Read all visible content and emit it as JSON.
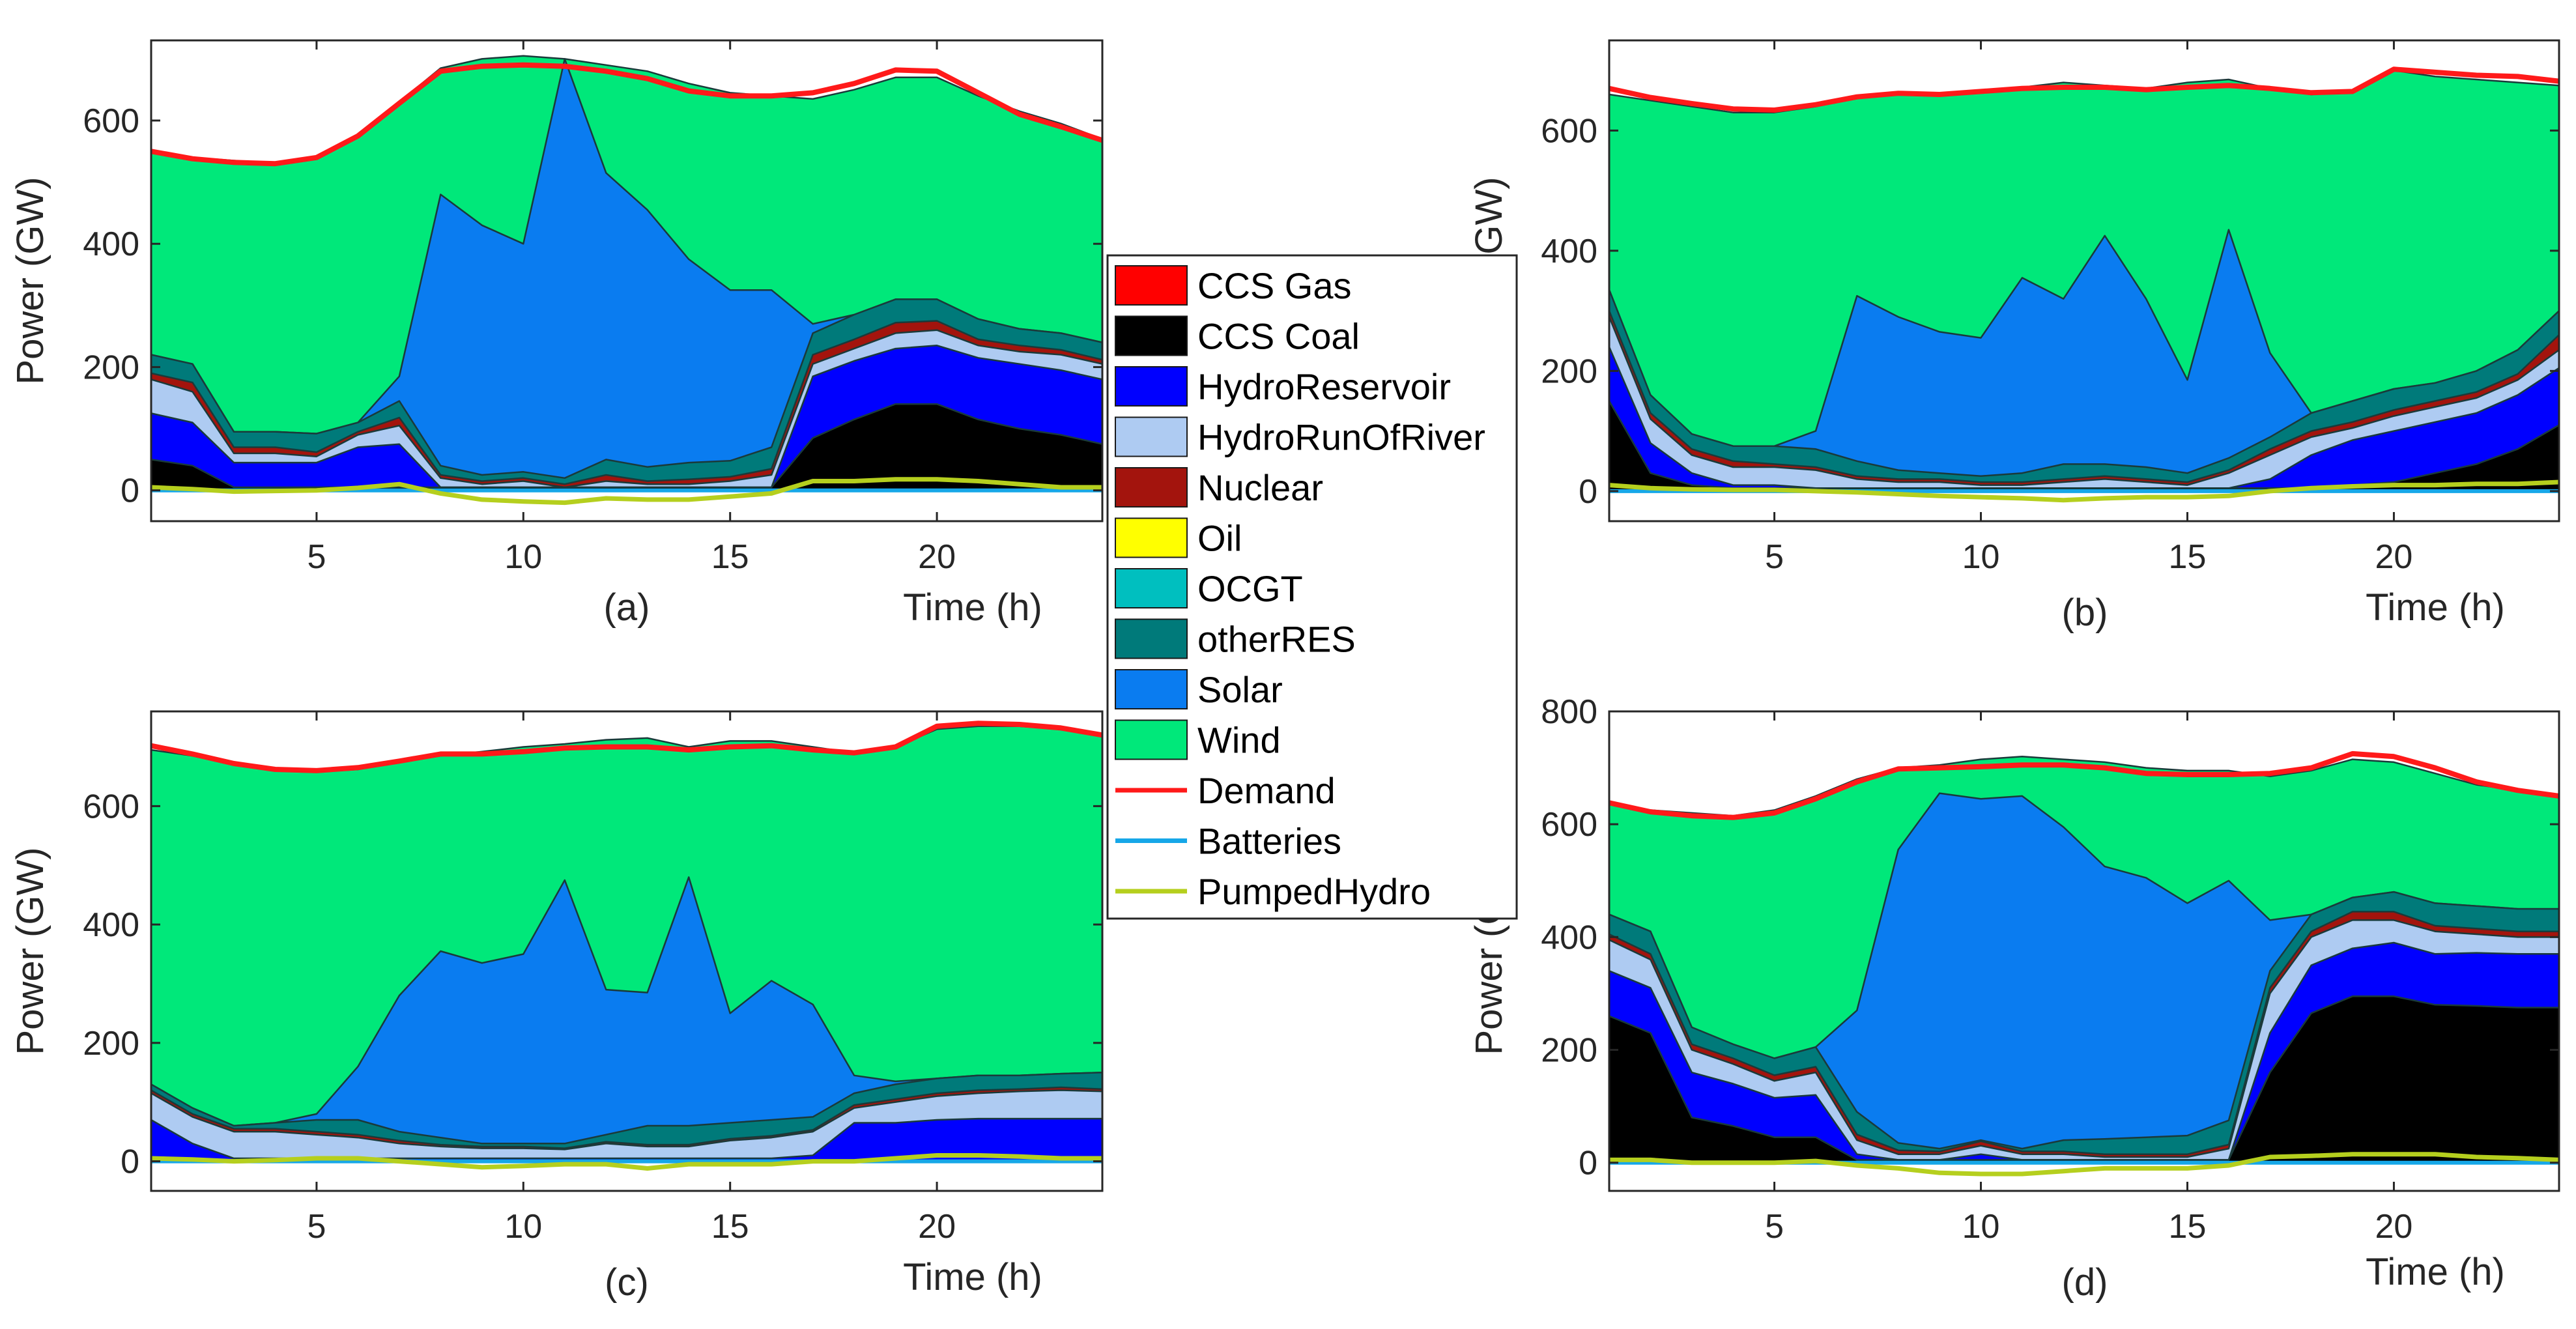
{
  "chart_data": [
    {
      "type": "area",
      "panel_label": "(a)",
      "xlabel": "Time (h)",
      "ylabel": "Power (GW)",
      "xlim": [
        1,
        24
      ],
      "ylim": [
        -50,
        730
      ],
      "xticks": [
        5,
        10,
        15,
        20
      ],
      "yticks": [
        0,
        200,
        400,
        600
      ],
      "x": [
        1,
        2,
        3,
        4,
        5,
        6,
        7,
        8,
        9,
        10,
        11,
        12,
        13,
        14,
        15,
        16,
        17,
        18,
        19,
        20,
        21,
        22,
        23,
        24
      ],
      "stack_tops": {
        "CCS Coal": [
          50,
          40,
          5,
          5,
          5,
          5,
          5,
          5,
          5,
          5,
          5,
          5,
          5,
          5,
          5,
          5,
          85,
          115,
          140,
          140,
          115,
          100,
          90,
          75
        ],
        "HydroReservoir": [
          125,
          110,
          45,
          45,
          45,
          70,
          75,
          5,
          5,
          5,
          5,
          5,
          5,
          5,
          5,
          5,
          185,
          210,
          230,
          235,
          215,
          205,
          195,
          180
        ],
        "HydroRunOfRiver": [
          180,
          160,
          60,
          60,
          55,
          90,
          105,
          20,
          10,
          15,
          5,
          15,
          10,
          10,
          15,
          25,
          205,
          230,
          255,
          260,
          235,
          225,
          220,
          205
        ],
        "Nuclear": [
          190,
          175,
          70,
          70,
          62,
          95,
          118,
          25,
          15,
          20,
          10,
          25,
          15,
          18,
          22,
          35,
          220,
          245,
          272,
          275,
          245,
          235,
          228,
          212
        ],
        "otherRES": [
          220,
          205,
          95,
          95,
          92,
          110,
          145,
          40,
          25,
          30,
          20,
          50,
          38,
          45,
          48,
          70,
          255,
          285,
          310,
          310,
          278,
          262,
          255,
          240
        ],
        "Solar": [
          220,
          205,
          95,
          95,
          92,
          110,
          185,
          480,
          430,
          400,
          700,
          515,
          455,
          375,
          325,
          325,
          270,
          285,
          310,
          310,
          278,
          262,
          255,
          240
        ],
        "Wind": [
          550,
          540,
          535,
          530,
          540,
          575,
          630,
          685,
          700,
          705,
          700,
          690,
          680,
          660,
          645,
          640,
          635,
          650,
          670,
          670,
          640,
          615,
          595,
          570
        ]
      },
      "demand": [
        550,
        538,
        532,
        530,
        540,
        575,
        628,
        680,
        688,
        690,
        688,
        680,
        668,
        648,
        640,
        640,
        645,
        660,
        682,
        680,
        645,
        610,
        590,
        568
      ],
      "batteries": [
        0,
        0,
        0,
        0,
        0,
        0,
        0,
        0,
        0,
        0,
        0,
        0,
        0,
        0,
        0,
        0,
        0,
        0,
        0,
        0,
        0,
        0,
        0,
        0
      ],
      "pumped_hydro": [
        5,
        2,
        -2,
        -1,
        0,
        4,
        10,
        -5,
        -15,
        -18,
        -20,
        -13,
        -15,
        -15,
        -10,
        -5,
        15,
        15,
        18,
        18,
        15,
        10,
        5,
        5
      ]
    },
    {
      "type": "area",
      "panel_label": "(b)",
      "xlabel": "Time (h)",
      "ylabel": "Power (GW)",
      "xlim": [
        1,
        24
      ],
      "ylim": [
        -50,
        750
      ],
      "xticks": [
        5,
        10,
        15,
        20
      ],
      "yticks": [
        0,
        200,
        400,
        600
      ],
      "x": [
        1,
        2,
        3,
        4,
        5,
        6,
        7,
        8,
        9,
        10,
        11,
        12,
        13,
        14,
        15,
        16,
        17,
        18,
        19,
        20,
        21,
        22,
        23,
        24
      ],
      "stack_tops": {
        "CCS Coal": [
          150,
          30,
          10,
          5,
          5,
          5,
          5,
          5,
          5,
          5,
          5,
          5,
          5,
          5,
          5,
          5,
          5,
          5,
          10,
          15,
          30,
          45,
          70,
          110
        ],
        "HydroReservoir": [
          240,
          80,
          30,
          10,
          10,
          5,
          5,
          5,
          5,
          5,
          5,
          5,
          5,
          5,
          5,
          5,
          20,
          60,
          85,
          100,
          115,
          130,
          160,
          205
        ],
        "HydroRunOfRiver": [
          290,
          120,
          60,
          40,
          40,
          35,
          20,
          15,
          15,
          10,
          10,
          15,
          20,
          15,
          10,
          30,
          60,
          90,
          105,
          125,
          140,
          155,
          185,
          235
        ],
        "Nuclear": [
          300,
          130,
          70,
          50,
          45,
          40,
          25,
          20,
          20,
          15,
          15,
          20,
          25,
          20,
          15,
          35,
          70,
          100,
          115,
          135,
          150,
          165,
          195,
          260
        ],
        "otherRES": [
          335,
          160,
          95,
          75,
          75,
          70,
          50,
          35,
          30,
          25,
          30,
          45,
          45,
          40,
          30,
          55,
          90,
          130,
          150,
          170,
          180,
          200,
          235,
          300
        ],
        "Solar": [
          335,
          160,
          95,
          75,
          75,
          100,
          325,
          290,
          265,
          255,
          355,
          320,
          425,
          320,
          185,
          435,
          230,
          130,
          150,
          170,
          180,
          200,
          235,
          300
        ],
        "Wind": [
          660,
          650,
          640,
          630,
          630,
          640,
          655,
          660,
          660,
          665,
          672,
          680,
          675,
          670,
          680,
          685,
          670,
          660,
          665,
          700,
          690,
          685,
          680,
          675
        ]
      },
      "demand": [
        670,
        655,
        645,
        636,
        634,
        643,
        656,
        662,
        660,
        665,
        670,
        672,
        672,
        668,
        672,
        675,
        670,
        663,
        665,
        702,
        697,
        692,
        690,
        682
      ],
      "batteries": [
        0,
        0,
        0,
        0,
        0,
        0,
        0,
        0,
        0,
        0,
        0,
        0,
        0,
        0,
        0,
        0,
        0,
        0,
        0,
        0,
        0,
        0,
        0,
        0
      ],
      "pumped_hydro": [
        10,
        5,
        3,
        2,
        2,
        0,
        -2,
        -5,
        -8,
        -10,
        -12,
        -15,
        -12,
        -10,
        -10,
        -8,
        0,
        5,
        8,
        10,
        10,
        12,
        12,
        15
      ]
    },
    {
      "type": "area",
      "panel_label": "(c)",
      "xlabel": "Time (h)",
      "ylabel": "Power (GW)",
      "xlim": [
        1,
        24
      ],
      "ylim": [
        -50,
        760
      ],
      "xticks": [
        5,
        10,
        15,
        20
      ],
      "yticks": [
        0,
        200,
        400,
        600
      ],
      "x": [
        1,
        2,
        3,
        4,
        5,
        6,
        7,
        8,
        9,
        10,
        11,
        12,
        13,
        14,
        15,
        16,
        17,
        18,
        19,
        20,
        21,
        22,
        23,
        24
      ],
      "stack_tops": {
        "CCS Coal": [
          0,
          0,
          0,
          0,
          0,
          0,
          0,
          0,
          0,
          0,
          0,
          0,
          0,
          0,
          0,
          0,
          0,
          0,
          0,
          0,
          0,
          0,
          0,
          0
        ],
        "HydroReservoir": [
          70,
          30,
          5,
          5,
          5,
          5,
          5,
          5,
          5,
          5,
          5,
          5,
          5,
          5,
          5,
          5,
          10,
          65,
          65,
          70,
          72,
          72,
          72,
          72
        ],
        "HydroRunOfRiver": [
          115,
          75,
          50,
          50,
          45,
          40,
          30,
          25,
          22,
          22,
          20,
          30,
          25,
          25,
          35,
          40,
          50,
          90,
          100,
          110,
          115,
          118,
          120,
          118
        ],
        "Nuclear": [
          120,
          80,
          55,
          55,
          50,
          45,
          35,
          28,
          25,
          25,
          22,
          33,
          28,
          28,
          38,
          43,
          53,
          95,
          105,
          115,
          120,
          122,
          125,
          122
        ],
        "otherRES": [
          130,
          90,
          60,
          65,
          70,
          70,
          50,
          40,
          30,
          30,
          30,
          45,
          60,
          60,
          65,
          70,
          75,
          115,
          130,
          140,
          145,
          145,
          148,
          150
        ],
        "Solar": [
          130,
          90,
          60,
          65,
          80,
          160,
          280,
          355,
          335,
          350,
          475,
          290,
          285,
          480,
          250,
          305,
          265,
          145,
          135,
          140,
          145,
          145,
          148,
          150
        ],
        "Wind": [
          695,
          685,
          670,
          660,
          658,
          662,
          675,
          685,
          692,
          700,
          705,
          712,
          715,
          700,
          710,
          710,
          700,
          690,
          700,
          730,
          735,
          735,
          730,
          720
        ]
      },
      "demand": [
        702,
        688,
        672,
        662,
        660,
        665,
        676,
        688,
        688,
        692,
        698,
        700,
        700,
        695,
        700,
        702,
        695,
        690,
        700,
        735,
        740,
        738,
        732,
        720
      ],
      "batteries": [
        0,
        0,
        0,
        0,
        0,
        0,
        0,
        0,
        0,
        0,
        0,
        0,
        0,
        0,
        0,
        0,
        0,
        0,
        0,
        0,
        0,
        0,
        0,
        0
      ],
      "pumped_hydro": [
        5,
        3,
        0,
        2,
        5,
        5,
        0,
        -5,
        -10,
        -8,
        -5,
        -5,
        -12,
        -5,
        -5,
        -5,
        0,
        0,
        5,
        10,
        10,
        8,
        5,
        5
      ]
    },
    {
      "type": "area",
      "panel_label": "(d)",
      "xlabel": "Time (h)",
      "ylabel": "Power (GW)",
      "xlim": [
        1,
        24
      ],
      "ylim": [
        -50,
        800
      ],
      "xticks": [
        5,
        10,
        15,
        20
      ],
      "yticks": [
        0,
        200,
        400,
        600,
        800
      ],
      "x": [
        1,
        2,
        3,
        4,
        5,
        6,
        7,
        8,
        9,
        10,
        11,
        12,
        13,
        14,
        15,
        16,
        17,
        18,
        19,
        20,
        21,
        22,
        23,
        24
      ],
      "stack_tops": {
        "CCS Coal": [
          260,
          230,
          80,
          65,
          45,
          45,
          5,
          5,
          5,
          5,
          5,
          5,
          5,
          5,
          5,
          5,
          160,
          265,
          295,
          295,
          280,
          278,
          275,
          275
        ],
        "HydroReservoir": [
          340,
          310,
          160,
          140,
          115,
          120,
          15,
          5,
          5,
          15,
          5,
          5,
          5,
          5,
          5,
          5,
          230,
          350,
          380,
          390,
          370,
          372,
          370,
          370
        ],
        "HydroRunOfRiver": [
          395,
          360,
          200,
          175,
          145,
          160,
          40,
          15,
          15,
          30,
          15,
          15,
          10,
          10,
          10,
          25,
          300,
          400,
          430,
          430,
          410,
          405,
          400,
          400
        ],
        "Nuclear": [
          405,
          370,
          210,
          185,
          155,
          170,
          50,
          22,
          20,
          38,
          20,
          20,
          15,
          15,
          15,
          32,
          310,
          410,
          445,
          445,
          420,
          415,
          410,
          410
        ],
        "otherRES": [
          440,
          410,
          240,
          210,
          185,
          205,
          90,
          35,
          25,
          40,
          25,
          40,
          42,
          45,
          48,
          75,
          340,
          440,
          470,
          480,
          460,
          455,
          450,
          450
        ],
        "Solar": [
          440,
          410,
          240,
          210,
          185,
          205,
          270,
          555,
          655,
          645,
          650,
          595,
          525,
          505,
          460,
          500,
          430,
          440,
          470,
          480,
          460,
          455,
          450,
          450
        ],
        "Wind": [
          635,
          625,
          620,
          615,
          625,
          650,
          680,
          700,
          705,
          715,
          720,
          715,
          710,
          700,
          695,
          695,
          685,
          695,
          715,
          710,
          690,
          670,
          660,
          650
        ]
      },
      "demand": [
        638,
        622,
        615,
        612,
        620,
        645,
        675,
        698,
        700,
        702,
        705,
        705,
        700,
        690,
        688,
        688,
        690,
        700,
        725,
        720,
        700,
        675,
        660,
        650
      ],
      "batteries": [
        0,
        0,
        0,
        0,
        0,
        0,
        0,
        0,
        0,
        0,
        0,
        0,
        0,
        0,
        0,
        0,
        0,
        0,
        0,
        0,
        0,
        0,
        0,
        0
      ],
      "pumped_hydro": [
        5,
        5,
        0,
        0,
        0,
        3,
        -5,
        -10,
        -18,
        -20,
        -20,
        -15,
        -10,
        -10,
        -10,
        -5,
        10,
        12,
        15,
        15,
        15,
        10,
        8,
        5
      ]
    }
  ],
  "legend": {
    "items": [
      {
        "label": "CCS Gas",
        "kind": "patch",
        "color": "#ff0000"
      },
      {
        "label": "CCS Coal",
        "kind": "patch",
        "color": "#000000"
      },
      {
        "label": "HydroReservoir",
        "kind": "patch",
        "color": "#0000ff"
      },
      {
        "label": "HydroRunOfRiver",
        "kind": "patch",
        "color": "#aecbf2"
      },
      {
        "label": "Nuclear",
        "kind": "patch",
        "color": "#a3140d"
      },
      {
        "label": "Oil",
        "kind": "patch",
        "color": "#ffff00"
      },
      {
        "label": "OCGT",
        "kind": "patch",
        "color": "#00bfbf"
      },
      {
        "label": "otherRES",
        "kind": "patch",
        "color": "#007a7a"
      },
      {
        "label": "Solar",
        "kind": "patch",
        "color": "#0a7cf0"
      },
      {
        "label": "Wind",
        "kind": "patch",
        "color": "#00e87a"
      },
      {
        "label": "Demand",
        "kind": "line",
        "color": "#ff1a1a"
      },
      {
        "label": "Batteries",
        "kind": "line",
        "color": "#16a7e8"
      },
      {
        "label": "PumpedHydro",
        "kind": "line",
        "color": "#b5cf1e"
      }
    ]
  },
  "colors": {
    "CCS Coal": "#000000",
    "HydroReservoir": "#0000ff",
    "HydroRunOfRiver": "#aecbf2",
    "Nuclear": "#a3140d",
    "otherRES": "#007a7a",
    "Solar": "#0a7cf0",
    "Wind": "#00e87a",
    "Demand": "#ff1a1a",
    "Batteries": "#16a7e8",
    "PumpedHydro": "#b5cf1e"
  }
}
